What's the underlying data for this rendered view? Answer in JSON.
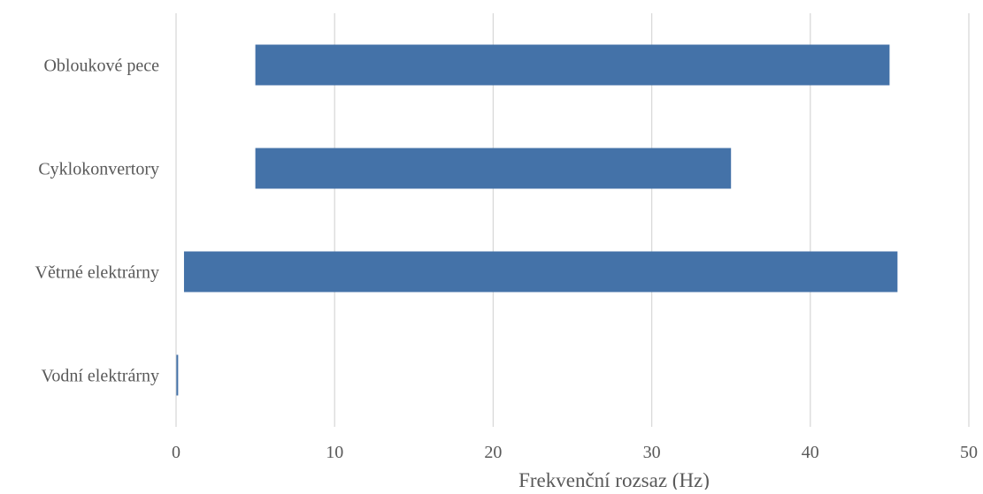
{
  "chart_data": {
    "type": "bar",
    "orientation": "horizontal",
    "stacked": true,
    "title": "",
    "xlabel": "Frekvenční rozsaz (Hz)",
    "ylabel": "",
    "xlim": [
      0,
      50
    ],
    "xticks": [
      "0",
      "10",
      "20",
      "30",
      "40",
      "50"
    ],
    "grid": true,
    "legend": "none",
    "categories": [
      "Obloukové pece",
      "Cyklokonvertory",
      "Větrné elektrárny",
      "Vodní elektrárny"
    ],
    "ranges": [
      {
        "category": "Obloukové pece",
        "start": 5,
        "end": 45
      },
      {
        "category": "Cyklokonvertory",
        "start": 5,
        "end": 35
      },
      {
        "category": "Větrné elektrárny",
        "start": 0.5,
        "end": 45.5
      },
      {
        "category": "Vodní elektrárny",
        "start": 0.02,
        "end": 0.1
      }
    ],
    "colors": {
      "bar": "#4472a8",
      "grid": "#d9d9d9",
      "text": "#595959"
    }
  }
}
